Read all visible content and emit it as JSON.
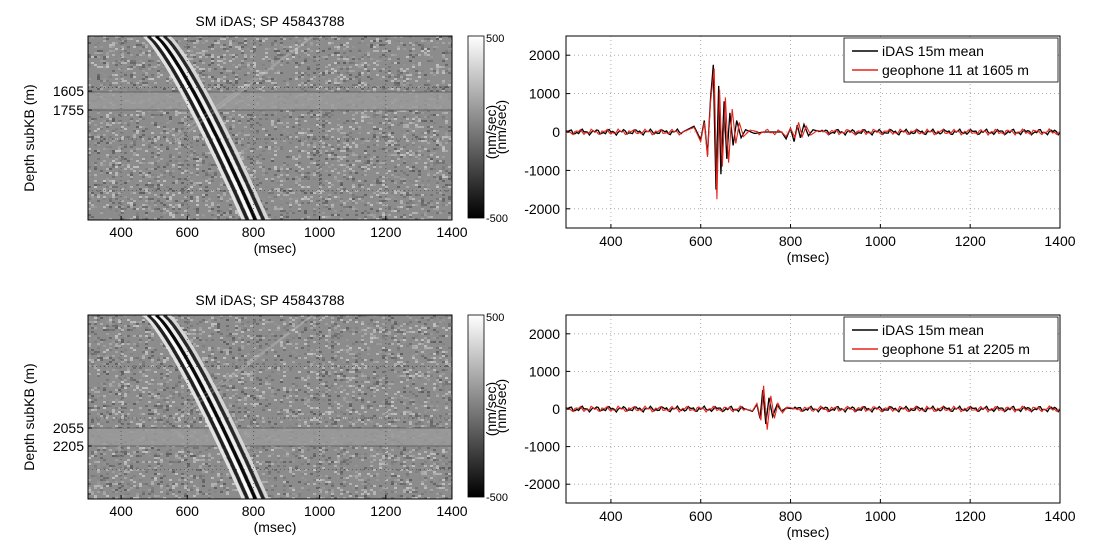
{
  "colors": {
    "idas": "#000000",
    "geophone": "#e8231a",
    "grid": "#9a9a9a",
    "colorbar_high": "#ffffff",
    "colorbar_low": "#000000"
  },
  "chart_data": [
    {
      "type": "heatmap",
      "title": "SM iDAS; SP 45843788",
      "xlabel": "(msec)",
      "ylabel": "Depth subKB (m)",
      "xlim": [
        300,
        1400
      ],
      "xticks": [
        400,
        600,
        800,
        1000,
        1200,
        1400
      ],
      "yticks": [
        "1605",
        "1755"
      ],
      "highlight_depths": [
        1605,
        1755
      ],
      "grid": true,
      "colorbar": {
        "label": "(nm/sec)",
        "min": -500,
        "max": 500,
        "ticks": [
          "500",
          "-500"
        ]
      },
      "moveout_ms": {
        "top": 500,
        "bottom": 800
      }
    },
    {
      "type": "line",
      "xlabel": "(msec)",
      "ylabel": "(nm/sec)",
      "xlim": [
        300,
        1400
      ],
      "ylim": [
        -2500,
        2500
      ],
      "xticks": [
        400,
        600,
        800,
        1000,
        1200,
        1400
      ],
      "yticks": [
        2000,
        1000,
        0,
        -1000,
        -2000
      ],
      "grid": true,
      "legend_position": "top-right",
      "series": [
        {
          "name": "iDAS 15m mean",
          "color": "#000000",
          "points": [
            [
              300,
              0
            ],
            [
              560,
              0
            ],
            [
              585,
              150
            ],
            [
              600,
              -200
            ],
            [
              608,
              300
            ],
            [
              615,
              -600
            ],
            [
              622,
              900
            ],
            [
              628,
              1750
            ],
            [
              634,
              -1500
            ],
            [
              640,
              1200
            ],
            [
              645,
              -1100
            ],
            [
              652,
              800
            ],
            [
              658,
              -700
            ],
            [
              665,
              500
            ],
            [
              672,
              -350
            ],
            [
              680,
              300
            ],
            [
              690,
              -150
            ],
            [
              700,
              60
            ],
            [
              720,
              -40
            ],
            [
              740,
              0
            ],
            [
              780,
              0
            ],
            [
              790,
              -180
            ],
            [
              800,
              100
            ],
            [
              808,
              -250
            ],
            [
              815,
              180
            ],
            [
              822,
              -150
            ],
            [
              830,
              200
            ],
            [
              840,
              -100
            ],
            [
              850,
              60
            ],
            [
              870,
              0
            ],
            [
              1400,
              0
            ]
          ]
        },
        {
          "name": "geophone 11 at 1605 m",
          "color": "#e8231a",
          "points": [
            [
              300,
              0
            ],
            [
              560,
              0
            ],
            [
              585,
              120
            ],
            [
              600,
              -250
            ],
            [
              608,
              250
            ],
            [
              615,
              -650
            ],
            [
              622,
              800
            ],
            [
              630,
              1650
            ],
            [
              636,
              -1750
            ],
            [
              642,
              1100
            ],
            [
              648,
              -900
            ],
            [
              655,
              900
            ],
            [
              662,
              -800
            ],
            [
              670,
              600
            ],
            [
              678,
              -300
            ],
            [
              686,
              250
            ],
            [
              695,
              -120
            ],
            [
              710,
              50
            ],
            [
              730,
              0
            ],
            [
              780,
              0
            ],
            [
              790,
              -120
            ],
            [
              800,
              100
            ],
            [
              810,
              -150
            ],
            [
              818,
              250
            ],
            [
              826,
              -120
            ],
            [
              835,
              150
            ],
            [
              845,
              -80
            ],
            [
              860,
              40
            ],
            [
              880,
              0
            ],
            [
              1400,
              0
            ]
          ]
        }
      ]
    },
    {
      "type": "heatmap",
      "title": "SM iDAS; SP 45843788",
      "xlabel": "(msec)",
      "ylabel": "Depth subKB (m)",
      "xlim": [
        300,
        1400
      ],
      "xticks": [
        400,
        600,
        800,
        1000,
        1200,
        1400
      ],
      "yticks": [
        "2055",
        "2205"
      ],
      "highlight_depths": [
        2055,
        2205
      ],
      "grid": true,
      "colorbar": {
        "label": "(nm/sec)",
        "min": -500,
        "max": 500,
        "ticks": [
          "500",
          "-500"
        ]
      },
      "moveout_ms": {
        "top": 500,
        "bottom": 800
      }
    },
    {
      "type": "line",
      "xlabel": "(msec)",
      "ylabel": "(nm/sec)",
      "xlim": [
        300,
        1400
      ],
      "ylim": [
        -2500,
        2500
      ],
      "xticks": [
        400,
        600,
        800,
        1000,
        1200,
        1400
      ],
      "yticks": [
        2000,
        1000,
        0,
        -1000,
        -2000
      ],
      "grid": true,
      "legend_position": "top-right",
      "series": [
        {
          "name": "iDAS 15m mean",
          "color": "#000000",
          "points": [
            [
              300,
              0
            ],
            [
              700,
              0
            ],
            [
              715,
              -60
            ],
            [
              725,
              120
            ],
            [
              732,
              -250
            ],
            [
              738,
              500
            ],
            [
              745,
              -400
            ],
            [
              752,
              300
            ],
            [
              760,
              -200
            ],
            [
              770,
              120
            ],
            [
              780,
              -60
            ],
            [
              790,
              30
            ],
            [
              810,
              0
            ],
            [
              1400,
              0
            ]
          ]
        },
        {
          "name": "geophone 51 at 2205 m",
          "color": "#e8231a",
          "points": [
            [
              300,
              0
            ],
            [
              700,
              0
            ],
            [
              715,
              -50
            ],
            [
              725,
              150
            ],
            [
              734,
              -300
            ],
            [
              740,
              620
            ],
            [
              748,
              -550
            ],
            [
              756,
              350
            ],
            [
              764,
              -250
            ],
            [
              772,
              150
            ],
            [
              782,
              -100
            ],
            [
              792,
              50
            ],
            [
              815,
              0
            ],
            [
              1400,
              0
            ]
          ]
        }
      ]
    }
  ]
}
